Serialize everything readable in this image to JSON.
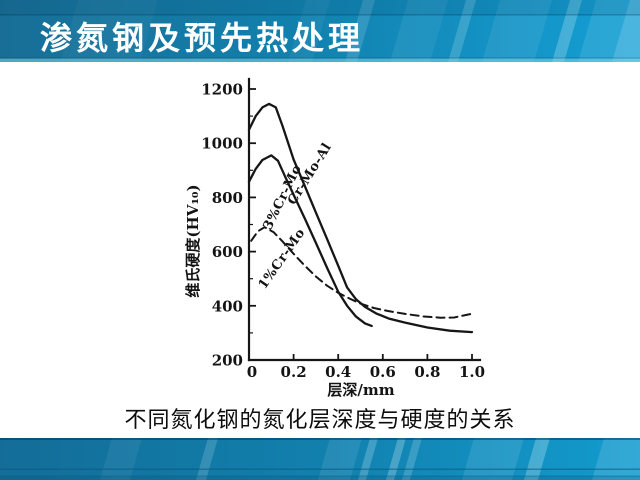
{
  "slide": {
    "title": "渗氮钢及预先热处理",
    "caption": "不同氮化钢的氮化层深度与硬度的关系",
    "theme": {
      "band_blue_left": "#186e96",
      "band_blue_mid": "#1280ad",
      "band_blue_right": "#149fd4",
      "title_color": "#ffffff",
      "ink": "#141414",
      "background": "#ffffff"
    }
  },
  "chart_data": {
    "type": "line",
    "title": "",
    "xlabel": "层深/mm",
    "ylabel": "维氏硬度(HV₁₀)",
    "xlim": [
      0,
      1.0
    ],
    "ylim": [
      200,
      1200
    ],
    "xticks": [
      0,
      0.2,
      0.4,
      0.6,
      0.8,
      1.0
    ],
    "xtick_labels": [
      "0",
      "0.2",
      "0.4",
      "0.6",
      "0.8",
      "1.0"
    ],
    "yticks": [
      200,
      400,
      600,
      800,
      1000,
      1200
    ],
    "yticks_minor": [
      300,
      500,
      700,
      900,
      1100
    ],
    "grid": false,
    "legend_position": "labels-along-curves",
    "line_color": "#161616",
    "series": [
      {
        "name": "Cr-Mo-Al",
        "line_style": "solid",
        "label": {
          "x": 148,
          "y": 103,
          "angle": -58
        },
        "points": [
          [
            0,
            1050
          ],
          [
            0.03,
            1100
          ],
          [
            0.06,
            1132
          ],
          [
            0.09,
            1145
          ],
          [
            0.12,
            1132
          ],
          [
            0.15,
            1065
          ],
          [
            0.2,
            940
          ],
          [
            0.25,
            842
          ],
          [
            0.3,
            744
          ],
          [
            0.35,
            646
          ],
          [
            0.4,
            548
          ],
          [
            0.44,
            468
          ],
          [
            0.48,
            424
          ],
          [
            0.52,
            396
          ],
          [
            0.57,
            372
          ],
          [
            0.63,
            352
          ],
          [
            0.7,
            338
          ],
          [
            0.8,
            320
          ],
          [
            0.9,
            308
          ],
          [
            1.0,
            303
          ]
        ]
      },
      {
        "name": "3%Cr-Mo",
        "line_style": "solid",
        "label": {
          "x": 121,
          "y": 126,
          "angle": -64
        },
        "points": [
          [
            0,
            858
          ],
          [
            0.03,
            905
          ],
          [
            0.06,
            938
          ],
          [
            0.1,
            955
          ],
          [
            0.13,
            935
          ],
          [
            0.16,
            880
          ],
          [
            0.2,
            810
          ],
          [
            0.25,
            722
          ],
          [
            0.3,
            632
          ],
          [
            0.35,
            540
          ],
          [
            0.4,
            452
          ],
          [
            0.44,
            400
          ],
          [
            0.48,
            360
          ],
          [
            0.52,
            335
          ],
          [
            0.55,
            326
          ]
        ]
      },
      {
        "name": "1%Cr-Mo",
        "line_style": "dashed",
        "label": {
          "x": 120,
          "y": 188,
          "angle": -55
        },
        "points": [
          [
            0.01,
            640
          ],
          [
            0.04,
            675
          ],
          [
            0.07,
            690
          ],
          [
            0.11,
            672
          ],
          [
            0.15,
            638
          ],
          [
            0.2,
            592
          ],
          [
            0.25,
            548
          ],
          [
            0.3,
            508
          ],
          [
            0.35,
            474
          ],
          [
            0.4,
            448
          ],
          [
            0.45,
            427
          ],
          [
            0.5,
            408
          ],
          [
            0.56,
            392
          ],
          [
            0.62,
            381
          ],
          [
            0.7,
            370
          ],
          [
            0.78,
            361
          ],
          [
            0.86,
            356
          ],
          [
            0.92,
            357
          ],
          [
            1.0,
            371
          ]
        ]
      }
    ]
  }
}
